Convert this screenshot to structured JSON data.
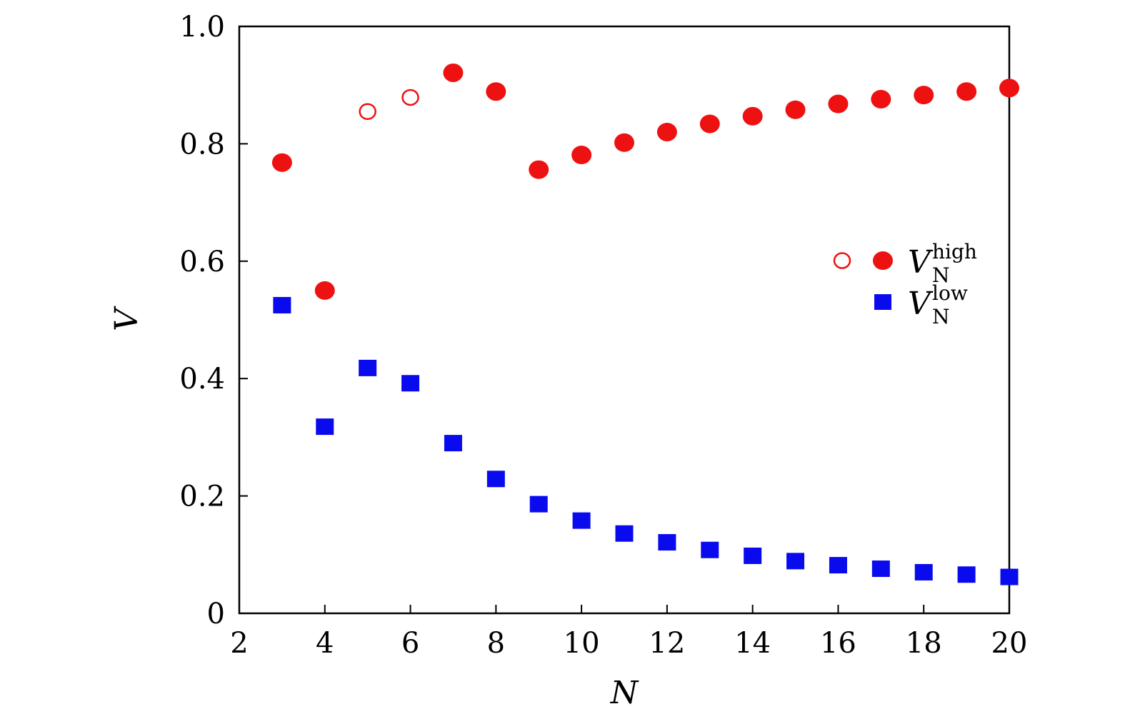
{
  "chart_data": {
    "type": "scatter",
    "title": "",
    "xlabel": "N",
    "ylabel": "V",
    "xlim": [
      2,
      20
    ],
    "ylim": [
      0,
      1.0
    ],
    "xticks": [
      2,
      4,
      6,
      8,
      10,
      12,
      14,
      16,
      18,
      20
    ],
    "xtick_labels": [
      "2",
      "4",
      "6",
      "8",
      "10",
      "12",
      "14",
      "16",
      "18",
      "20"
    ],
    "yticks": [
      0,
      0.2,
      0.4,
      0.6,
      0.8,
      1.0
    ],
    "ytick_labels": [
      "0",
      "0.2",
      "0.4",
      "0.6",
      "0.8",
      "1.0"
    ],
    "grid": false,
    "legend_position": "right",
    "series": [
      {
        "key": "high",
        "legend": {
          "main": "V",
          "sup": "high",
          "sub": "N"
        },
        "color": "#ee1111",
        "marker": "circle",
        "points": [
          {
            "x": 3,
            "y": 0.768,
            "filled": true
          },
          {
            "x": 4,
            "y": 0.55,
            "filled": true
          },
          {
            "x": 5,
            "y": 0.855,
            "filled": false
          },
          {
            "x": 6,
            "y": 0.879,
            "filled": false
          },
          {
            "x": 7,
            "y": 0.921,
            "filled": true
          },
          {
            "x": 8,
            "y": 0.889,
            "filled": true
          },
          {
            "x": 9,
            "y": 0.756,
            "filled": true
          },
          {
            "x": 10,
            "y": 0.781,
            "filled": true
          },
          {
            "x": 11,
            "y": 0.802,
            "filled": true
          },
          {
            "x": 12,
            "y": 0.82,
            "filled": true
          },
          {
            "x": 13,
            "y": 0.834,
            "filled": true
          },
          {
            "x": 14,
            "y": 0.847,
            "filled": true
          },
          {
            "x": 15,
            "y": 0.858,
            "filled": true
          },
          {
            "x": 16,
            "y": 0.868,
            "filled": true
          },
          {
            "x": 17,
            "y": 0.876,
            "filled": true
          },
          {
            "x": 18,
            "y": 0.883,
            "filled": true
          },
          {
            "x": 19,
            "y": 0.889,
            "filled": true
          },
          {
            "x": 20,
            "y": 0.895,
            "filled": true
          }
        ]
      },
      {
        "key": "low",
        "legend": {
          "main": "V",
          "sup": "low",
          "sub": "N"
        },
        "color": "#0a0aee",
        "marker": "square",
        "points": [
          {
            "x": 3,
            "y": 0.525,
            "filled": true
          },
          {
            "x": 4,
            "y": 0.318,
            "filled": true
          },
          {
            "x": 5,
            "y": 0.418,
            "filled": true
          },
          {
            "x": 6,
            "y": 0.392,
            "filled": true
          },
          {
            "x": 7,
            "y": 0.29,
            "filled": true
          },
          {
            "x": 8,
            "y": 0.229,
            "filled": true
          },
          {
            "x": 9,
            "y": 0.186,
            "filled": true
          },
          {
            "x": 10,
            "y": 0.158,
            "filled": true
          },
          {
            "x": 11,
            "y": 0.136,
            "filled": true
          },
          {
            "x": 12,
            "y": 0.121,
            "filled": true
          },
          {
            "x": 13,
            "y": 0.108,
            "filled": true
          },
          {
            "x": 14,
            "y": 0.098,
            "filled": true
          },
          {
            "x": 15,
            "y": 0.089,
            "filled": true
          },
          {
            "x": 16,
            "y": 0.082,
            "filled": true
          },
          {
            "x": 17,
            "y": 0.076,
            "filled": true
          },
          {
            "x": 18,
            "y": 0.07,
            "filled": true
          },
          {
            "x": 19,
            "y": 0.066,
            "filled": true
          },
          {
            "x": 20,
            "y": 0.062,
            "filled": true
          }
        ]
      }
    ]
  }
}
